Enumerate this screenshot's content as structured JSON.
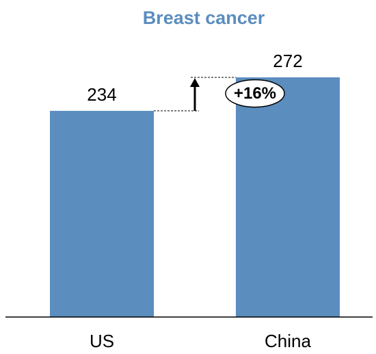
{
  "chart_data": {
    "type": "bar",
    "title": "Breast cancer",
    "categories": [
      "US",
      "China"
    ],
    "values": [
      234,
      272
    ],
    "color": "#5b8dbe",
    "annotations": [
      "+16%"
    ]
  }
}
